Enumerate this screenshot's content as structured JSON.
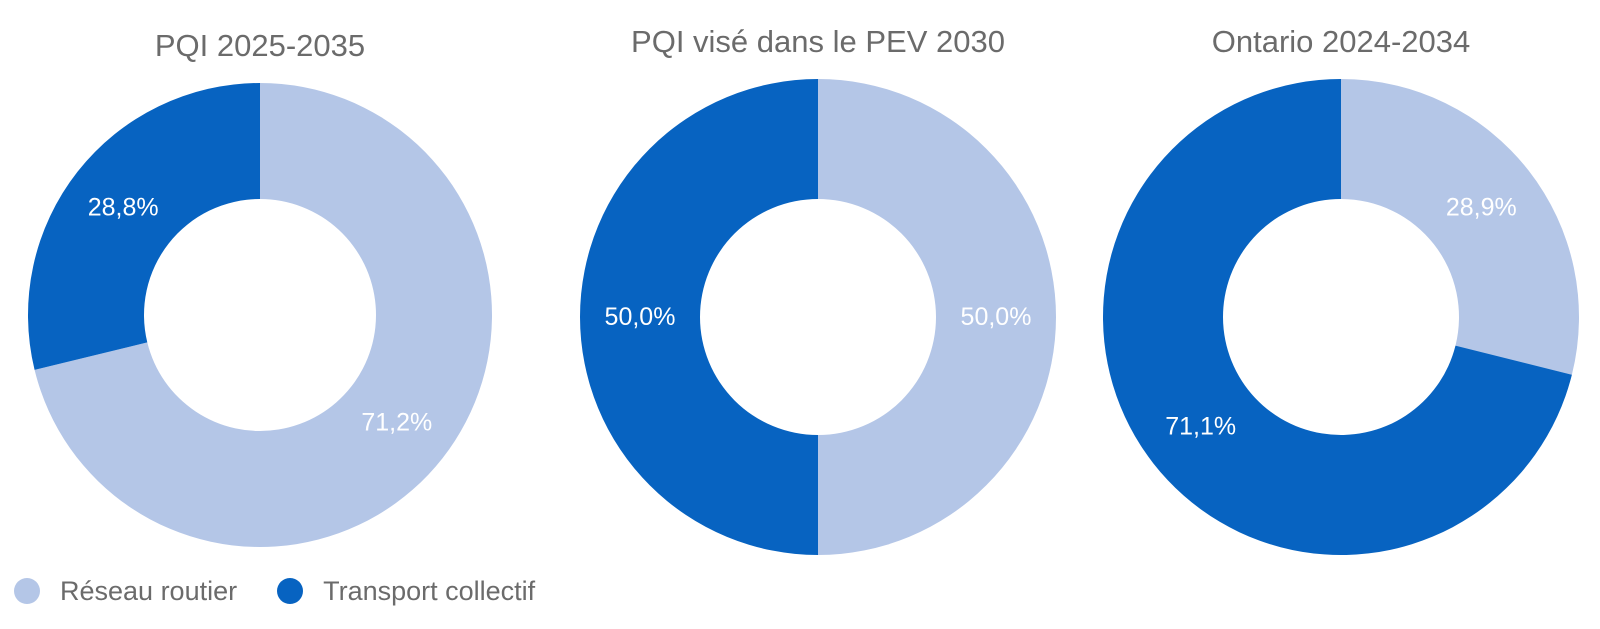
{
  "colors": {
    "reseau_routier": "#b4c6e7",
    "transport_collectif": "#0763c1",
    "title_text": "#6b6b6b",
    "label_text": "#ffffff"
  },
  "legend": {
    "items": [
      {
        "label": "Réseau routier",
        "color": "#b4c6e7"
      },
      {
        "label": "Transport collectif",
        "color": "#0763c1"
      }
    ]
  },
  "chart_data": [
    {
      "type": "pie",
      "donut": true,
      "title": "PQI 2025-2035",
      "series": [
        {
          "name": "Réseau routier",
          "value": 71.2,
          "label": "71,2%"
        },
        {
          "name": "Transport collectif",
          "value": 28.8,
          "label": "28,8%"
        }
      ]
    },
    {
      "type": "pie",
      "donut": true,
      "title": "PQI visé dans le PEV 2030",
      "series": [
        {
          "name": "Réseau routier",
          "value": 50.0,
          "label": "50,0%"
        },
        {
          "name": "Transport collectif",
          "value": 50.0,
          "label": "50,0%"
        }
      ]
    },
    {
      "type": "pie",
      "donut": true,
      "title": "Ontario 2024-2034",
      "series": [
        {
          "name": "Réseau routier",
          "value": 28.9,
          "label": "28,9%"
        },
        {
          "name": "Transport collectif",
          "value": 71.1,
          "label": "71,1%"
        }
      ]
    }
  ]
}
